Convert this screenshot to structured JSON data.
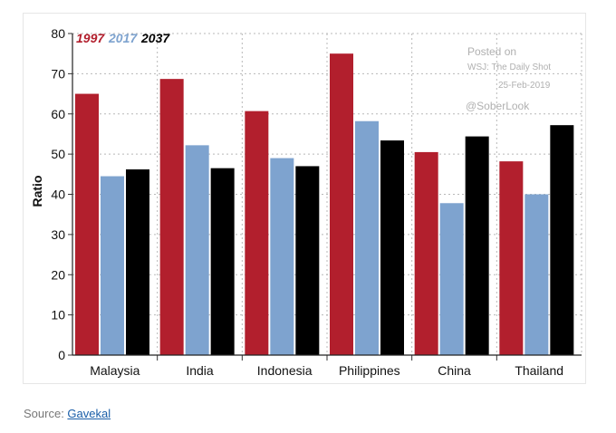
{
  "chart_data": {
    "type": "bar",
    "title": "",
    "xlabel": "",
    "ylabel": "Ratio",
    "ylim": [
      0,
      80
    ],
    "yticks": [
      0,
      10,
      20,
      30,
      40,
      50,
      60,
      70,
      80
    ],
    "grid": true,
    "legend_position": "top-left",
    "categories": [
      "Malaysia",
      "India",
      "Indonesia",
      "Philippines",
      "China",
      "Thailand"
    ],
    "series": [
      {
        "name": "1997",
        "color": "#b21f2d",
        "values": [
          65,
          68.7,
          60.7,
          75,
          50.5,
          48.2
        ]
      },
      {
        "name": "2017",
        "color": "#7ea3cf",
        "values": [
          44.5,
          52.2,
          49,
          58.2,
          37.8,
          40
        ]
      },
      {
        "name": "2037",
        "color": "#000000",
        "values": [
          46.2,
          46.5,
          47,
          53.4,
          54.4,
          57.2
        ]
      }
    ]
  },
  "watermark": {
    "line1": "Posted on",
    "line2": "WSJ: The Daily Shot",
    "line3": "25-Feb-2019",
    "handle": "@SoberLook"
  },
  "source": {
    "prefix": "Source: ",
    "link_text": "Gavekal"
  }
}
